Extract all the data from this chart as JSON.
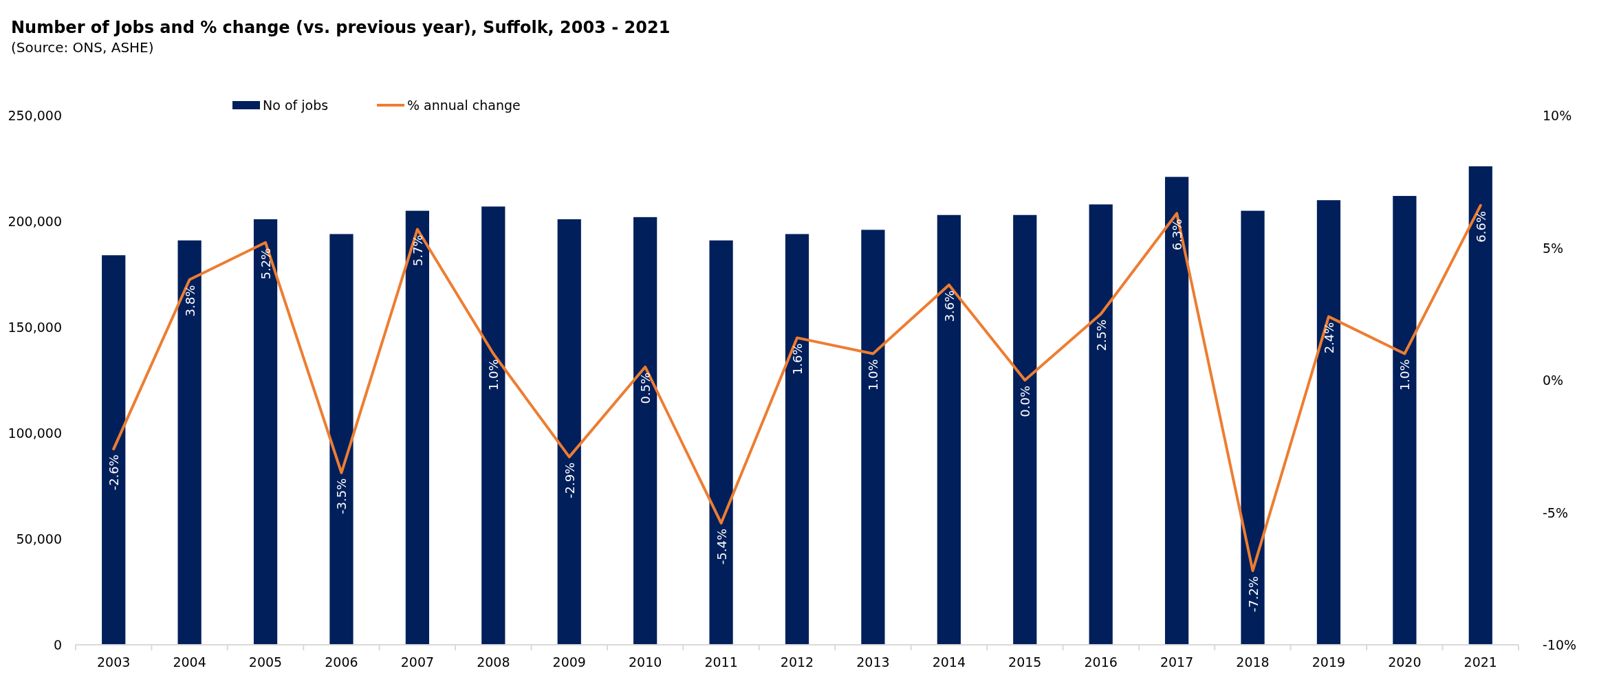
{
  "chart_data": {
    "type": "bar",
    "title": "Number of Jobs and % change (vs. previous year), Suffolk, 2003 - 2021",
    "subtitle": "(Source: ONS, ASHE)",
    "categories": [
      "2003",
      "2004",
      "2005",
      "2006",
      "2007",
      "2008",
      "2009",
      "2010",
      "2011",
      "2012",
      "2013",
      "2014",
      "2015",
      "2016",
      "2017",
      "2018",
      "2019",
      "2020",
      "2021"
    ],
    "series": [
      {
        "name": "No of jobs",
        "color": "#001f5b",
        "values": [
          184000,
          191000,
          201000,
          194000,
          205000,
          207000,
          201000,
          202000,
          191000,
          194000,
          196000,
          203000,
          203000,
          208000,
          221000,
          205000,
          210000,
          212000,
          226000
        ]
      },
      {
        "name": "% annual change",
        "type": "line",
        "axis": "y2",
        "color": "#ed7d31",
        "values": [
          -2.6,
          3.8,
          5.2,
          -3.5,
          5.7,
          1.0,
          -2.9,
          0.5,
          -5.4,
          1.6,
          1.0,
          3.6,
          0.0,
          2.5,
          6.3,
          -7.2,
          2.4,
          1.0,
          6.6
        ],
        "value_labels": [
          "-2.6%",
          "3.8%",
          "5.2%",
          "-3.5%",
          "5.7%",
          "1.0%",
          "-2.9%",
          "0.5%",
          "-5.4%",
          "1.6%",
          "1.0%",
          "3.6%",
          "0.0%",
          "2.5%",
          "6.3%",
          "-7.2%",
          "2.4%",
          "1.0%",
          "6.6%"
        ]
      }
    ],
    "ylim": [
      0,
      250000
    ],
    "yticks": [
      {
        "value": 0,
        "label": "0"
      },
      {
        "value": 50000,
        "label": "50,000"
      },
      {
        "value": 100000,
        "label": "100,000"
      },
      {
        "value": 150000,
        "label": "150,000"
      },
      {
        "value": 200000,
        "label": "200,000"
      },
      {
        "value": 250000,
        "label": "250,000"
      }
    ],
    "y2lim": [
      -10,
      10
    ],
    "y2ticks": [
      {
        "value": -10,
        "label": "-10%"
      },
      {
        "value": -5,
        "label": "-5%"
      },
      {
        "value": 0,
        "label": "0%"
      },
      {
        "value": 5,
        "label": "5%"
      },
      {
        "value": 10,
        "label": "10%"
      }
    ],
    "legend": "top",
    "grid": false
  }
}
